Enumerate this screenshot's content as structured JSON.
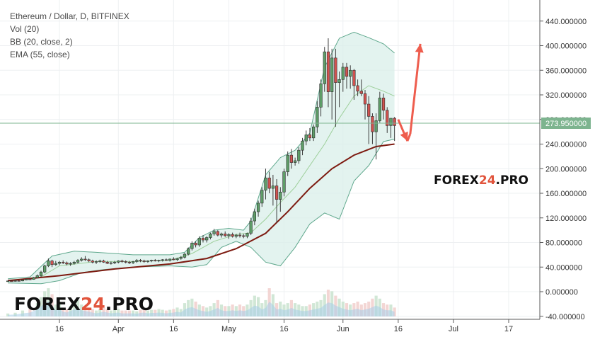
{
  "legend": {
    "symbol": "Ethereum / Dollar, D, BITFINEX",
    "vol": "Vol (20)",
    "bb": "BB (20, close, 2)",
    "ema": "EMA (55, close)"
  },
  "watermark": {
    "part1": "FOREX",
    "part2": "24",
    "part3": ".PRO"
  },
  "colors": {
    "up": "#5e9e68",
    "down": "#d2524f",
    "bb": "#5fa88d",
    "bb_fill": "#d9efe9",
    "ema": "#7d1a10",
    "arrow": "#ee5d4e",
    "price_line": "#7db48f"
  },
  "chart_data": {
    "type": "candlestick",
    "title": "Ethereum / Dollar, D, BITFINEX",
    "ylim": [
      -40,
      460
    ],
    "y_ticks": [
      "440.000000",
      "400.000000",
      "360.000000",
      "320.000000",
      "280.000000",
      "240.000000",
      "200.000000",
      "160.000000",
      "120.000000",
      "80.000000",
      "40.000000",
      "0.000000",
      "-40.000000"
    ],
    "y_tick_values": [
      440,
      400,
      360,
      320,
      280,
      240,
      200,
      160,
      120,
      80,
      40,
      0,
      -40
    ],
    "x_ticks": [
      "16",
      "Apr",
      "16",
      "May",
      "16",
      "Jun",
      "16",
      "Jul",
      "17"
    ],
    "x_tick_days": [
      0,
      16,
      31,
      46,
      61,
      77,
      92,
      107,
      122
    ],
    "last_price": "273.950000",
    "last_price_value": 273.95,
    "series": [
      {
        "name": "Vol (20)"
      },
      {
        "name": "BB (20, close, 2)"
      },
      {
        "name": "EMA (55, close)"
      }
    ],
    "candles": [
      [
        -14,
        17,
        18,
        16,
        17.5
      ],
      [
        -13,
        17.5,
        18,
        16.5,
        17
      ],
      [
        -12,
        17,
        19,
        16.5,
        18
      ],
      [
        -11,
        18,
        19,
        17,
        17.5
      ],
      [
        -10,
        17.5,
        20,
        17,
        19
      ],
      [
        -9,
        19,
        21,
        18.5,
        20.5
      ],
      [
        -8,
        20.5,
        22,
        19,
        20
      ],
      [
        -7,
        20,
        24,
        19.5,
        23
      ],
      [
        -6,
        23,
        28,
        22,
        26
      ],
      [
        -5,
        26,
        34,
        24,
        32
      ],
      [
        -4,
        32,
        44,
        30,
        42
      ],
      [
        -3,
        42,
        54,
        40,
        50
      ],
      [
        -2,
        50,
        52,
        40,
        44
      ],
      [
        -1,
        44,
        50,
        42,
        46
      ],
      [
        0,
        46,
        50,
        43,
        48
      ],
      [
        1,
        48,
        51,
        45,
        47
      ],
      [
        2,
        47,
        49,
        43,
        45
      ],
      [
        3,
        45,
        48,
        42,
        46
      ],
      [
        4,
        46,
        50,
        44,
        48
      ],
      [
        5,
        48,
        53,
        46,
        51
      ],
      [
        6,
        51,
        56,
        49,
        53
      ],
      [
        7,
        53,
        58,
        50,
        52
      ],
      [
        8,
        52,
        54,
        48,
        50
      ],
      [
        9,
        50,
        52,
        46,
        48
      ],
      [
        10,
        48,
        51,
        45,
        49
      ],
      [
        11,
        49,
        52,
        47,
        50
      ],
      [
        12,
        50,
        52,
        47,
        48
      ],
      [
        13,
        48,
        50,
        45,
        46
      ],
      [
        14,
        46,
        49,
        44,
        47
      ],
      [
        15,
        47,
        50,
        45,
        48
      ],
      [
        16,
        48,
        51,
        46,
        50
      ],
      [
        17,
        50,
        52,
        47,
        49
      ],
      [
        18,
        49,
        51,
        46,
        48
      ],
      [
        19,
        48,
        50,
        45,
        47
      ],
      [
        20,
        47,
        50,
        45,
        49
      ],
      [
        21,
        49,
        53,
        47,
        51
      ],
      [
        22,
        51,
        53,
        48,
        50
      ],
      [
        23,
        50,
        52,
        47,
        49
      ],
      [
        24,
        49,
        51,
        47,
        50
      ],
      [
        25,
        50,
        52,
        48,
        51
      ],
      [
        26,
        51,
        53,
        49,
        50
      ],
      [
        27,
        50,
        52,
        48,
        51
      ],
      [
        28,
        51,
        53,
        49,
        52
      ],
      [
        29,
        52,
        54,
        50,
        51
      ],
      [
        30,
        51,
        54,
        49,
        53
      ],
      [
        31,
        53,
        56,
        51,
        52
      ],
      [
        32,
        52,
        55,
        50,
        54
      ],
      [
        33,
        54,
        58,
        52,
        56
      ],
      [
        34,
        56,
        63,
        54,
        61
      ],
      [
        35,
        61,
        72,
        59,
        70
      ],
      [
        36,
        70,
        82,
        67,
        79
      ],
      [
        37,
        79,
        82,
        72,
        76
      ],
      [
        38,
        76,
        90,
        73,
        87
      ],
      [
        39,
        87,
        92,
        80,
        84
      ],
      [
        40,
        84,
        90,
        80,
        88
      ],
      [
        41,
        88,
        96,
        85,
        94
      ],
      [
        42,
        94,
        102,
        91,
        98
      ],
      [
        43,
        98,
        100,
        90,
        92
      ],
      [
        44,
        92,
        96,
        88,
        94
      ],
      [
        45,
        94,
        98,
        89,
        91
      ],
      [
        46,
        91,
        95,
        86,
        93
      ],
      [
        47,
        93,
        96,
        88,
        90
      ],
      [
        48,
        90,
        94,
        87,
        92
      ],
      [
        49,
        92,
        96,
        88,
        91
      ],
      [
        50,
        91,
        94,
        87,
        90
      ],
      [
        51,
        90,
        96,
        87,
        95
      ],
      [
        52,
        95,
        120,
        92,
        115
      ],
      [
        53,
        115,
        135,
        108,
        130
      ],
      [
        54,
        130,
        148,
        122,
        144
      ],
      [
        55,
        144,
        170,
        138,
        165
      ],
      [
        56,
        165,
        200,
        150,
        185
      ],
      [
        57,
        185,
        195,
        160,
        168
      ],
      [
        58,
        168,
        190,
        140,
        172
      ],
      [
        59,
        172,
        183,
        112,
        150
      ],
      [
        60,
        150,
        170,
        130,
        162
      ],
      [
        61,
        162,
        200,
        155,
        195
      ],
      [
        62,
        195,
        228,
        188,
        222
      ],
      [
        63,
        222,
        232,
        200,
        210
      ],
      [
        64,
        210,
        218,
        205,
        213
      ],
      [
        65,
        213,
        235,
        208,
        230
      ],
      [
        66,
        230,
        250,
        222,
        245
      ],
      [
        67,
        245,
        262,
        238,
        255
      ],
      [
        68,
        255,
        266,
        245,
        250
      ],
      [
        69,
        250,
        272,
        245,
        268
      ],
      [
        70,
        268,
        310,
        258,
        300
      ],
      [
        71,
        300,
        345,
        285,
        338
      ],
      [
        72,
        338,
        398,
        325,
        390
      ],
      [
        73,
        390,
        412,
        300,
        325
      ],
      [
        74,
        325,
        395,
        280,
        380
      ],
      [
        75,
        380,
        395,
        268,
        340
      ],
      [
        76,
        340,
        358,
        300,
        345
      ],
      [
        77,
        345,
        372,
        325,
        365
      ],
      [
        78,
        365,
        372,
        330,
        350
      ],
      [
        79,
        350,
        368,
        330,
        360
      ],
      [
        80,
        360,
        362,
        312,
        335
      ],
      [
        81,
        335,
        345,
        318,
        326
      ],
      [
        82,
        326,
        345,
        318,
        322
      ],
      [
        83,
        322,
        328,
        280,
        305
      ],
      [
        84,
        305,
        318,
        240,
        285
      ],
      [
        85,
        285,
        290,
        240,
        260
      ],
      [
        86,
        260,
        290,
        215,
        278
      ],
      [
        87,
        278,
        325,
        275,
        315
      ],
      [
        88,
        315,
        322,
        280,
        295
      ],
      [
        89,
        295,
        300,
        258,
        270
      ],
      [
        90,
        270,
        282,
        250,
        282
      ],
      [
        91,
        282,
        284,
        245,
        270
      ]
    ],
    "ema_points": [
      [
        -14,
        18
      ],
      [
        0,
        26
      ],
      [
        15,
        37
      ],
      [
        30,
        45
      ],
      [
        40,
        54
      ],
      [
        48,
        70
      ],
      [
        56,
        95
      ],
      [
        62,
        130
      ],
      [
        68,
        168
      ],
      [
        74,
        200
      ],
      [
        80,
        222
      ],
      [
        86,
        236
      ],
      [
        91,
        240
      ]
    ],
    "bb_upper": [
      [
        -14,
        21
      ],
      [
        -8,
        24
      ],
      [
        -2,
        58
      ],
      [
        4,
        66
      ],
      [
        10,
        64
      ],
      [
        20,
        60
      ],
      [
        30,
        60
      ],
      [
        34,
        64
      ],
      [
        38,
        88
      ],
      [
        42,
        100
      ],
      [
        46,
        103
      ],
      [
        50,
        100
      ],
      [
        52,
        115
      ],
      [
        56,
        190
      ],
      [
        60,
        218
      ],
      [
        64,
        230
      ],
      [
        68,
        258
      ],
      [
        72,
        365
      ],
      [
        76,
        412
      ],
      [
        80,
        422
      ],
      [
        84,
        413
      ],
      [
        88,
        403
      ],
      [
        91,
        388
      ]
    ],
    "bb_middle": [
      [
        -14,
        18
      ],
      [
        -5,
        24
      ],
      [
        0,
        42
      ],
      [
        10,
        49
      ],
      [
        20,
        49
      ],
      [
        30,
        51
      ],
      [
        36,
        62
      ],
      [
        42,
        82
      ],
      [
        48,
        93
      ],
      [
        52,
        96
      ],
      [
        56,
        118
      ],
      [
        60,
        145
      ],
      [
        64,
        170
      ],
      [
        68,
        205
      ],
      [
        72,
        240
      ],
      [
        76,
        282
      ],
      [
        80,
        318
      ],
      [
        84,
        335
      ],
      [
        88,
        326
      ],
      [
        91,
        318
      ]
    ],
    "bb_lower": [
      [
        -14,
        14
      ],
      [
        -5,
        13
      ],
      [
        0,
        18
      ],
      [
        6,
        31
      ],
      [
        12,
        36
      ],
      [
        20,
        40
      ],
      [
        30,
        42
      ],
      [
        36,
        40
      ],
      [
        40,
        44
      ],
      [
        44,
        72
      ],
      [
        48,
        82
      ],
      [
        52,
        72
      ],
      [
        56,
        48
      ],
      [
        60,
        42
      ],
      [
        64,
        72
      ],
      [
        68,
        110
      ],
      [
        72,
        128
      ],
      [
        76,
        118
      ],
      [
        80,
        180
      ],
      [
        84,
        205
      ],
      [
        88,
        244
      ],
      [
        91,
        248
      ]
    ],
    "volume": [
      [
        -14,
        4
      ],
      [
        -12,
        5
      ],
      [
        -10,
        8
      ],
      [
        -8,
        10
      ],
      [
        -6,
        18
      ],
      [
        -5,
        26
      ],
      [
        -4,
        34
      ],
      [
        -3,
        38
      ],
      [
        -2,
        30
      ],
      [
        -1,
        16
      ],
      [
        0,
        20
      ],
      [
        1,
        12
      ],
      [
        2,
        10
      ],
      [
        3,
        14
      ],
      [
        4,
        18
      ],
      [
        5,
        22
      ],
      [
        6,
        16
      ],
      [
        7,
        14
      ],
      [
        8,
        12
      ],
      [
        9,
        10
      ],
      [
        10,
        8
      ],
      [
        11,
        10
      ],
      [
        12,
        12
      ],
      [
        13,
        10
      ],
      [
        14,
        8
      ],
      [
        15,
        9
      ],
      [
        16,
        10
      ],
      [
        17,
        8
      ],
      [
        18,
        8
      ],
      [
        19,
        8
      ],
      [
        20,
        8
      ],
      [
        21,
        7
      ],
      [
        22,
        9
      ],
      [
        23,
        10
      ],
      [
        24,
        8
      ],
      [
        25,
        9
      ],
      [
        26,
        9
      ],
      [
        27,
        10
      ],
      [
        28,
        9
      ],
      [
        29,
        8
      ],
      [
        30,
        9
      ],
      [
        31,
        10
      ],
      [
        32,
        12
      ],
      [
        33,
        10
      ],
      [
        34,
        18
      ],
      [
        35,
        22
      ],
      [
        36,
        24
      ],
      [
        37,
        20
      ],
      [
        38,
        16
      ],
      [
        39,
        14
      ],
      [
        40,
        12
      ],
      [
        41,
        14
      ],
      [
        42,
        18
      ],
      [
        43,
        22
      ],
      [
        44,
        16
      ],
      [
        45,
        14
      ],
      [
        46,
        14
      ],
      [
        47,
        16
      ],
      [
        48,
        14
      ],
      [
        49,
        16
      ],
      [
        50,
        14
      ],
      [
        51,
        16
      ],
      [
        52,
        22
      ],
      [
        53,
        28
      ],
      [
        54,
        26
      ],
      [
        55,
        18
      ],
      [
        56,
        22
      ],
      [
        57,
        38
      ],
      [
        58,
        30
      ],
      [
        59,
        18
      ],
      [
        60,
        20
      ],
      [
        61,
        16
      ],
      [
        62,
        18
      ],
      [
        63,
        22
      ],
      [
        64,
        18
      ],
      [
        65,
        16
      ],
      [
        66,
        14
      ],
      [
        67,
        14
      ],
      [
        68,
        16
      ],
      [
        69,
        18
      ],
      [
        70,
        20
      ],
      [
        71,
        22
      ],
      [
        72,
        30
      ],
      [
        73,
        36
      ],
      [
        74,
        34
      ],
      [
        75,
        28
      ],
      [
        76,
        24
      ],
      [
        77,
        20
      ],
      [
        78,
        18
      ],
      [
        79,
        16
      ],
      [
        80,
        18
      ],
      [
        81,
        20
      ],
      [
        82,
        16
      ],
      [
        83,
        18
      ],
      [
        84,
        20
      ],
      [
        85,
        24
      ],
      [
        86,
        28
      ],
      [
        87,
        24
      ],
      [
        88,
        18
      ],
      [
        89,
        16
      ],
      [
        90,
        16
      ],
      [
        91,
        12
      ]
    ]
  }
}
